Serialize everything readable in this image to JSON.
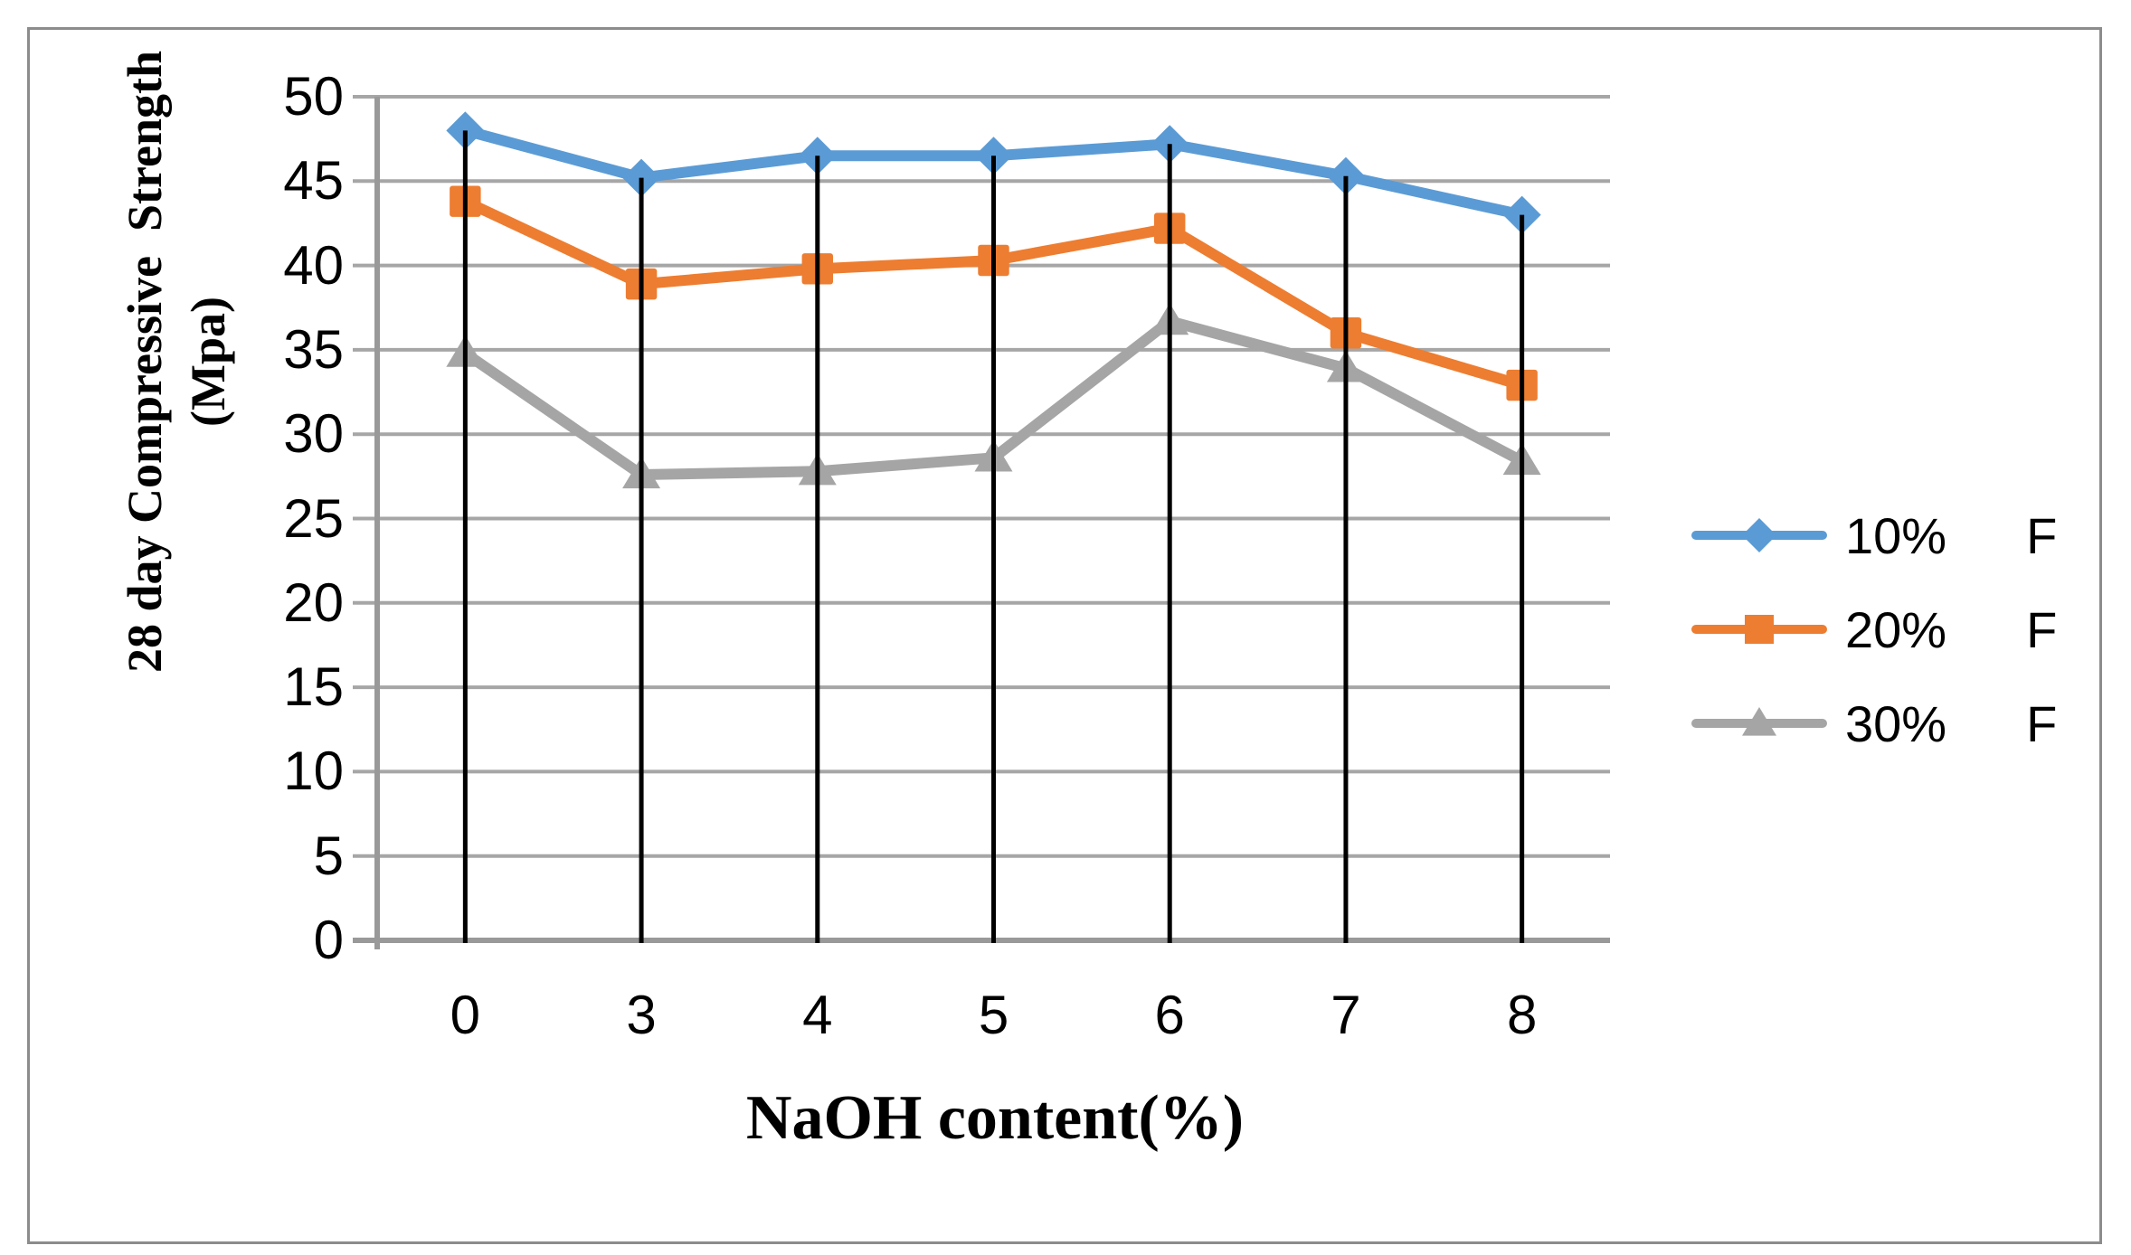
{
  "frame": {
    "border_color": "#8C8C8C",
    "background": "#FFFFFF"
  },
  "chart_data": {
    "type": "line",
    "title": "",
    "xlabel": "NaOH content(%)",
    "ylabel_lines": [
      "28 day Compressive  Strength",
      "(Mpa)"
    ],
    "ylabel": "28 day Compressive Strength (Mpa)",
    "categories": [
      "0",
      "3",
      "4",
      "5",
      "6",
      "7",
      "8"
    ],
    "y_ticks": [
      0,
      5,
      10,
      15,
      20,
      25,
      30,
      35,
      40,
      45,
      50
    ],
    "ylim": [
      0,
      50
    ],
    "grid": true,
    "drop_lines": true,
    "legend_position": "right",
    "series": [
      {
        "name": "10% F",
        "label": "10%",
        "label_suffix": "F",
        "marker": "diamond",
        "color": "#5B9BD5",
        "values": [
          48,
          45.2,
          46.5,
          46.5,
          47.2,
          45.3,
          43
        ]
      },
      {
        "name": "20% F",
        "label": "20%",
        "label_suffix": "F",
        "marker": "square",
        "color": "#ED7D31",
        "values": [
          43.8,
          38.9,
          39.8,
          40.3,
          42.2,
          36,
          32.9
        ]
      },
      {
        "name": "30% F",
        "label": "30%",
        "label_suffix": "F",
        "marker": "triangle",
        "color": "#A5A5A5",
        "values": [
          34.8,
          27.6,
          27.8,
          28.6,
          36.7,
          33.9,
          28.4
        ]
      }
    ],
    "colors": {
      "gridline": "#A6A6A6",
      "axis": "#999999",
      "drop_line": "#000000"
    }
  }
}
